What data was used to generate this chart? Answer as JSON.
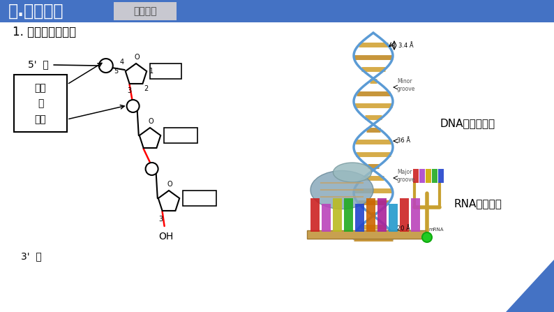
{
  "title_text": "一.知识梳理",
  "title_sub": "必备知识",
  "title_bg": "#4472C4",
  "title_sub_bg": "#C8C8D0",
  "bg_color": "#FFFFFF",
  "section1_title": "1. 核酸的结构层次",
  "label_5prime": "5’  端",
  "label_3prime": "3’  端",
  "label_OH": "OH",
  "label_phospho1": "磷酸",
  "label_phospho2": "二",
  "label_phospho3": "酯键",
  "label_dna": "DNA双螺旋结构",
  "label_rna": "RNA单链结构",
  "black": "#000000",
  "red": "#CC0000",
  "blue_corner": "#4472C4",
  "minor_groove": "Minor\ngroove",
  "major_groove": "Major\ngroove",
  "dim1": "3.4 Å",
  "dim2": "36 Å",
  "dim3": "20 Å"
}
